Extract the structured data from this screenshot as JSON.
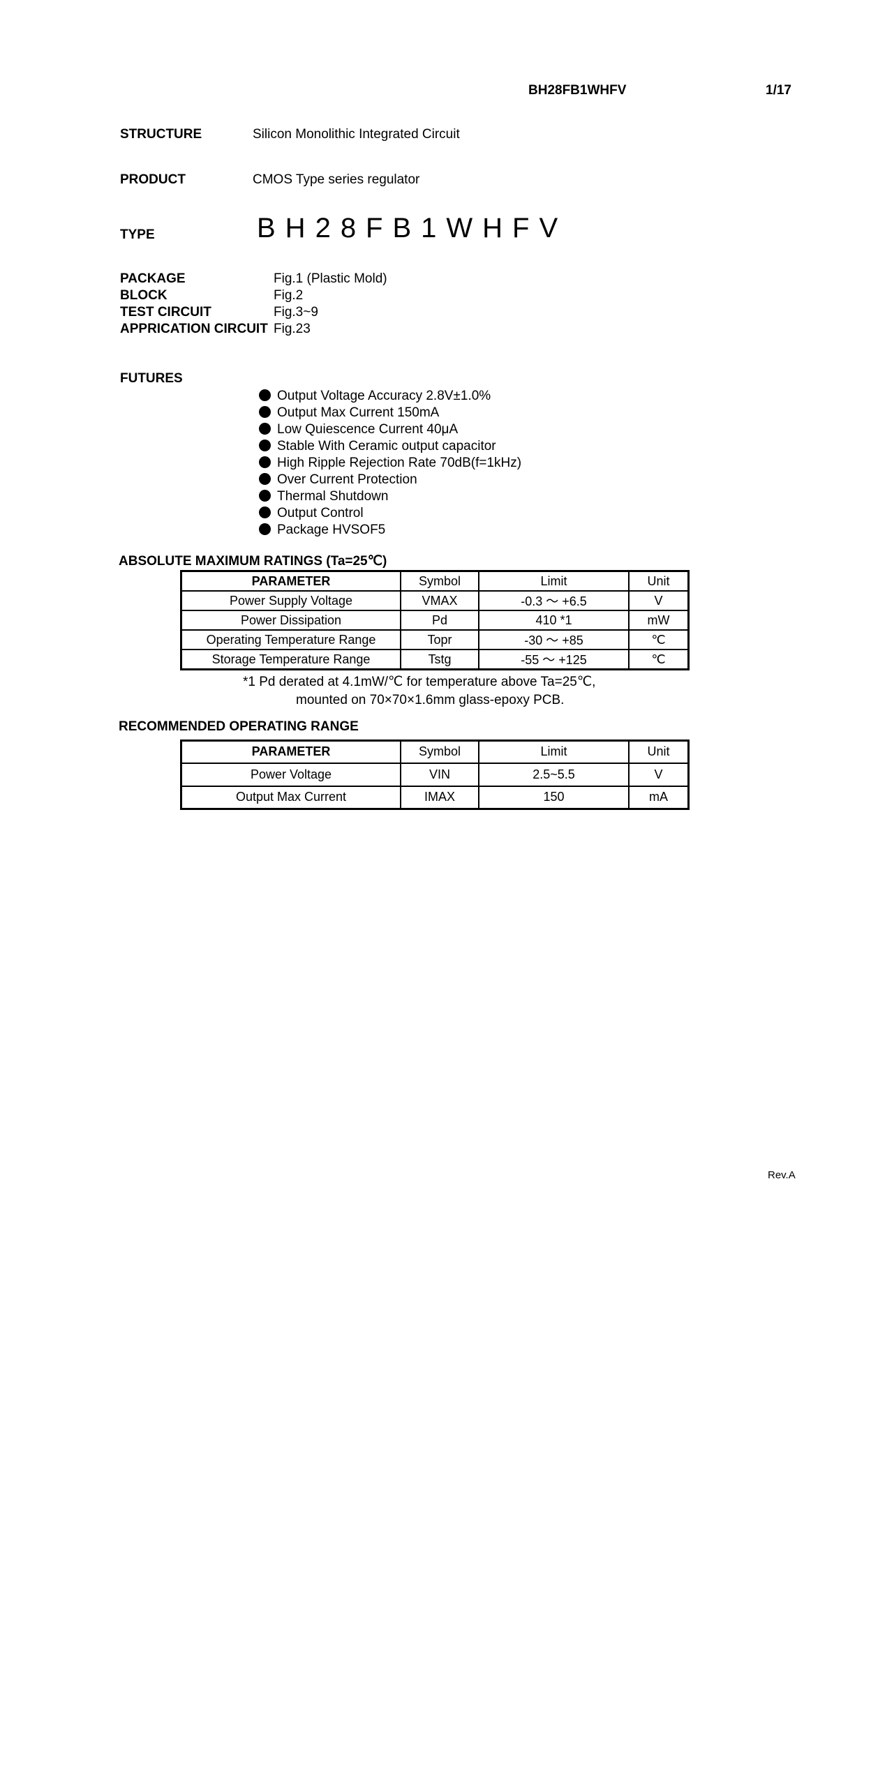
{
  "header": {
    "doc_id": "BH28FB1WHFV",
    "page": "1/17"
  },
  "structure": {
    "label": "STRUCTURE",
    "value": "Silicon Monolithic Integrated Circuit"
  },
  "product": {
    "label": "PRODUCT",
    "value": "CMOS Type series regulator"
  },
  "type": {
    "label": "TYPE",
    "value": "BH28FB1WHFV"
  },
  "figures": [
    {
      "label": "PACKAGE",
      "value": "Fig.1 (Plastic Mold)"
    },
    {
      "label": "BLOCK",
      "value": "Fig.2"
    },
    {
      "label": "TEST CIRCUIT",
      "value": "Fig.3~9"
    },
    {
      "label": "APPRICATION CIRCUIT",
      "value": "Fig.23"
    }
  ],
  "features": {
    "label": "FUTURES",
    "items": [
      "Output Voltage Accuracy 2.8V±1.0%",
      "Output Max Current 150mA",
      "Low Quiescence Current 40μA",
      "Stable With Ceramic output capacitor",
      "High Ripple Rejection Rate 70dB(f=1kHz)",
      "Over Current Protection",
      "Thermal Shutdown",
      "Output Control",
      "Package HVSOF5"
    ]
  },
  "abs_max": {
    "title": "ABSOLUTE MAXIMUM RATINGS  (Ta=25℃)",
    "headers": [
      "PARAMETER",
      "Symbol",
      "Limit",
      "Unit"
    ],
    "rows": [
      [
        "Power Supply Voltage",
        "VMAX",
        "-0.3 ～  +6.5",
        "V"
      ],
      [
        "Power Dissipation",
        "Pd",
        "410 *1",
        "mW"
      ],
      [
        "Operating Temperature Range",
        "Topr",
        "-30 ～ +85",
        "℃"
      ],
      [
        "Storage Temperature Range",
        "Tstg",
        "-55  ～ +125",
        "℃"
      ]
    ],
    "note_line1": "*1 Pd derated at 4.1mW/℃ for temperature above Ta=25℃,",
    "note_line2": "mounted on 70×70×1.6mm glass-epoxy PCB."
  },
  "recommended": {
    "title": "RECOMMENDED OPERATING RANGE",
    "headers": [
      "PARAMETER",
      "Symbol",
      "Limit",
      "Unit"
    ],
    "rows": [
      [
        "Power Voltage",
        "VIN",
        "2.5~5.5",
        "V"
      ],
      [
        "Output Max Current",
        "IMAX",
        "150",
        "mA"
      ]
    ]
  },
  "footer": {
    "revision": "Rev.A"
  }
}
